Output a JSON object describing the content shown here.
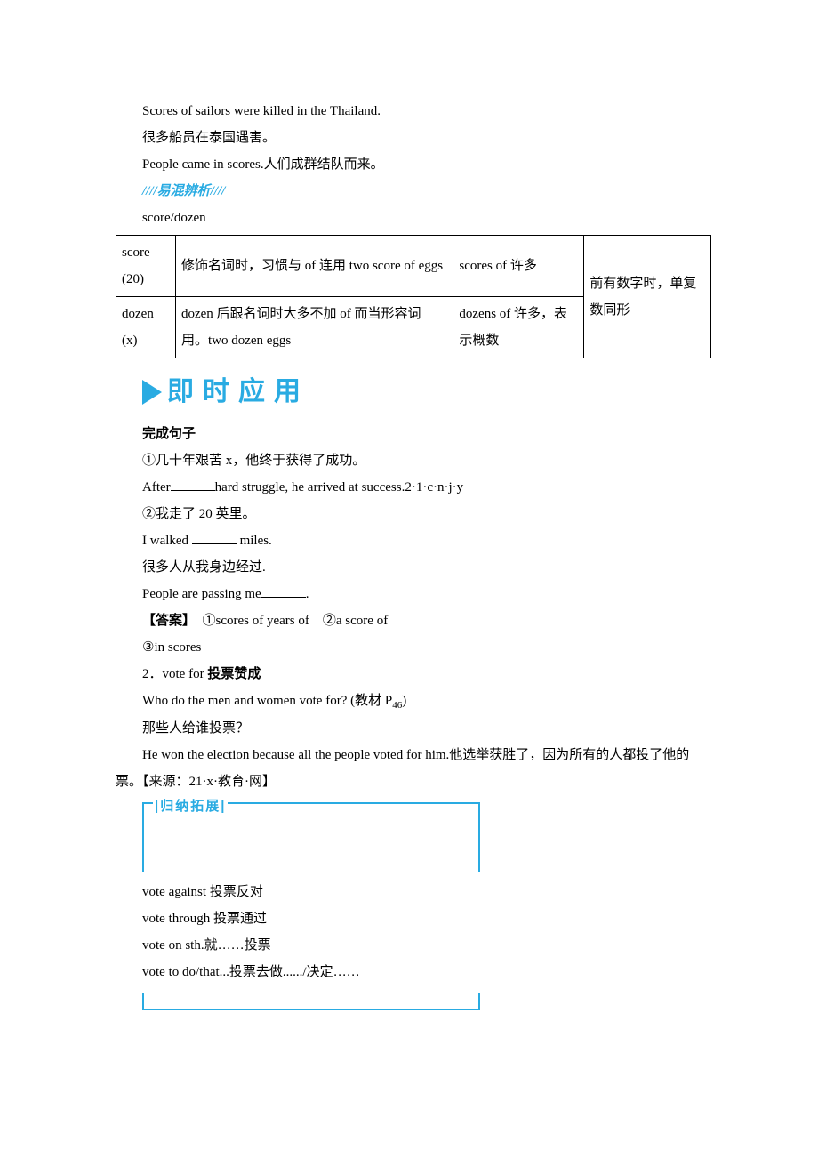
{
  "intro": {
    "line1_en": "Scores of sailors were killed in the Thailand.",
    "line1_zh": "很多船员在泰国遇害。",
    "line2": "People came in scores.人们成群结队而来。"
  },
  "confuse": {
    "marker": "////易混辨析////",
    "heading": "score/dozen"
  },
  "table": {
    "r1c1": "score (20)",
    "r1c2": "修饰名词时，习惯与 of 连用 two score of eggs",
    "r1c3": "scores of  许多",
    "r2c1": "dozen (x)",
    "r2c2": "dozen 后跟名词时大多不加 of 而当形容词用。two dozen eggs",
    "r2c3": "dozens of 许多，表示概数",
    "merged": "前有数字时，单复数同形"
  },
  "jishi": "即时应用",
  "fill": {
    "heading": "完成句子",
    "q1_zh": "①几十年艰苦 x，他终于获得了成功。",
    "q1_en_a": "After",
    "q1_en_b": "hard struggle, he arrived at success.2·1·c·n·j·y",
    "q2_zh": "②我走了 20 英里。",
    "q2_en_a": "I walked ",
    "q2_en_b": " miles.",
    "q3_zh": "很多人从我身边经过.",
    "q3_en_a": "People are passing me",
    "q3_en_b": ".",
    "ans_label": "【答案】",
    "ans_line1": "　①scores of years of　②a score of",
    "ans_line2": "③in scores"
  },
  "vote": {
    "heading_num": "2．vote for ",
    "heading_bold": "投票赞成",
    "line1_a": "Who do the men and women vote for?  (教材 P",
    "line1_sub": "46",
    "line1_b": ")",
    "line2": "那些人给谁投票？",
    "line3": "He won the election because all the people voted for him.他选举获胜了，因为所有的人都投了他的票。【来源：21·x·教育·网】"
  },
  "expand": {
    "label": "|归纳拓展|",
    "l1": "vote against 投票反对",
    "l2": "vote through 投票通过",
    "l3": "vote on sth.就……投票",
    "l4": "vote to do/that...投票去做....../决定……"
  }
}
